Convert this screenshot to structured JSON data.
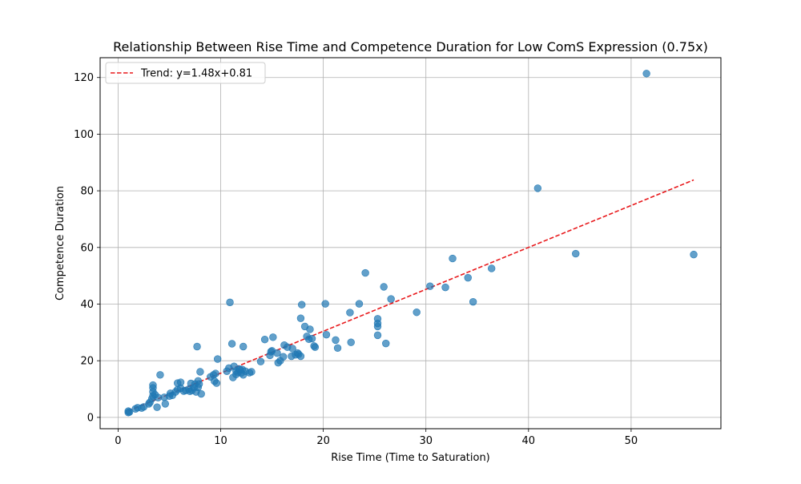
{
  "chart_data": {
    "type": "scatter",
    "title": "Relationship Between Rise Time and Competence Duration for Low ComS Expression (0.75x)",
    "xlabel": "Rise Time (Time to Saturation)",
    "ylabel": "Competence Duration",
    "xlim": [
      -1.75,
      58.75
    ],
    "ylim": [
      -4,
      127
    ],
    "xticks": [
      0,
      10,
      20,
      30,
      40,
      50
    ],
    "yticks": [
      0,
      20,
      40,
      60,
      80,
      100,
      120
    ],
    "grid": true,
    "legend_position": "upper-left",
    "series": [
      {
        "type": "scatter",
        "color": "#1f77b4",
        "alpha": 0.7,
        "points": [
          [
            1.0,
            1.7
          ],
          [
            1.0,
            2.2
          ],
          [
            1.1,
            1.9
          ],
          [
            1.7,
            3.0
          ],
          [
            1.9,
            3.4
          ],
          [
            2.3,
            3.3
          ],
          [
            2.5,
            3.7
          ],
          [
            3.0,
            4.8
          ],
          [
            3.1,
            5.3
          ],
          [
            3.3,
            6.6
          ],
          [
            3.4,
            7.6
          ],
          [
            3.4,
            9.0
          ],
          [
            3.4,
            10.4
          ],
          [
            3.4,
            11.4
          ],
          [
            3.6,
            8.0
          ],
          [
            3.8,
            3.6
          ],
          [
            3.9,
            7.0
          ],
          [
            4.1,
            15.0
          ],
          [
            4.5,
            7.1
          ],
          [
            4.6,
            4.8
          ],
          [
            5.0,
            7.5
          ],
          [
            5.1,
            8.5
          ],
          [
            5.3,
            7.8
          ],
          [
            5.6,
            9.0
          ],
          [
            5.8,
            9.8
          ],
          [
            5.8,
            12.1
          ],
          [
            6.1,
            12.4
          ],
          [
            6.1,
            10.3
          ],
          [
            6.4,
            9.3
          ],
          [
            6.6,
            9.5
          ],
          [
            6.9,
            10.0
          ],
          [
            7.0,
            9.2
          ],
          [
            7.1,
            12.0
          ],
          [
            7.2,
            9.5
          ],
          [
            7.4,
            10.5
          ],
          [
            7.5,
            11.8
          ],
          [
            7.6,
            9.0
          ],
          [
            7.7,
            25.0
          ],
          [
            7.8,
            10.6
          ],
          [
            7.8,
            12.9
          ],
          [
            7.9,
            11.8
          ],
          [
            8.0,
            16.1
          ],
          [
            8.1,
            8.3
          ],
          [
            9.0,
            14.3
          ],
          [
            9.3,
            15.0
          ],
          [
            9.4,
            12.8
          ],
          [
            9.5,
            15.5
          ],
          [
            9.6,
            12.1
          ],
          [
            9.7,
            20.6
          ],
          [
            10.6,
            16.3
          ],
          [
            10.8,
            17.4
          ],
          [
            10.9,
            40.6
          ],
          [
            11.1,
            26.0
          ],
          [
            11.2,
            14.1
          ],
          [
            11.3,
            18.0
          ],
          [
            11.5,
            15.2
          ],
          [
            11.5,
            16.4
          ],
          [
            11.7,
            15.9
          ],
          [
            11.8,
            17.1
          ],
          [
            11.9,
            16.8
          ],
          [
            12.0,
            15.7
          ],
          [
            12.1,
            16.9
          ],
          [
            12.2,
            15.0
          ],
          [
            12.2,
            25.0
          ],
          [
            12.4,
            16.3
          ],
          [
            12.8,
            15.8
          ],
          [
            13.0,
            16.1
          ],
          [
            13.9,
            19.7
          ],
          [
            14.3,
            27.5
          ],
          [
            14.8,
            21.9
          ],
          [
            14.9,
            23.2
          ],
          [
            15.0,
            23.5
          ],
          [
            15.1,
            28.3
          ],
          [
            15.5,
            22.7
          ],
          [
            15.6,
            19.3
          ],
          [
            15.8,
            20.0
          ],
          [
            16.1,
            21.4
          ],
          [
            16.2,
            25.5
          ],
          [
            16.5,
            24.8
          ],
          [
            16.9,
            21.6
          ],
          [
            17.0,
            24.3
          ],
          [
            17.3,
            22.1
          ],
          [
            17.5,
            22.7
          ],
          [
            17.6,
            22.3
          ],
          [
            17.8,
            21.6
          ],
          [
            17.8,
            35.0
          ],
          [
            17.9,
            39.8
          ],
          [
            18.2,
            32.1
          ],
          [
            18.4,
            28.6
          ],
          [
            18.6,
            27.6
          ],
          [
            18.7,
            31.1
          ],
          [
            18.9,
            27.8
          ],
          [
            19.1,
            25.2
          ],
          [
            19.2,
            24.8
          ],
          [
            20.2,
            40.1
          ],
          [
            20.3,
            29.2
          ],
          [
            21.2,
            27.3
          ],
          [
            21.4,
            24.5
          ],
          [
            22.6,
            37.0
          ],
          [
            22.7,
            26.5
          ],
          [
            23.5,
            40.1
          ],
          [
            24.1,
            51.0
          ],
          [
            25.3,
            29.0
          ],
          [
            25.3,
            32.1
          ],
          [
            25.3,
            33.2
          ],
          [
            25.3,
            34.8
          ],
          [
            25.9,
            46.1
          ],
          [
            26.1,
            26.1
          ],
          [
            26.6,
            41.8
          ],
          [
            29.1,
            37.1
          ],
          [
            30.4,
            46.3
          ],
          [
            31.9,
            45.9
          ],
          [
            32.6,
            56.1
          ],
          [
            34.1,
            49.3
          ],
          [
            34.6,
            40.8
          ],
          [
            36.4,
            52.6
          ],
          [
            40.9,
            80.9
          ],
          [
            44.6,
            57.8
          ],
          [
            51.5,
            121.4
          ],
          [
            56.1,
            57.5
          ]
        ]
      },
      {
        "type": "line",
        "name": "Trend: y=1.48x+0.81",
        "color": "#e8191c",
        "dashed": true,
        "slope": 1.48,
        "intercept": 0.81,
        "x_range": [
          1.0,
          56.1
        ]
      }
    ]
  }
}
